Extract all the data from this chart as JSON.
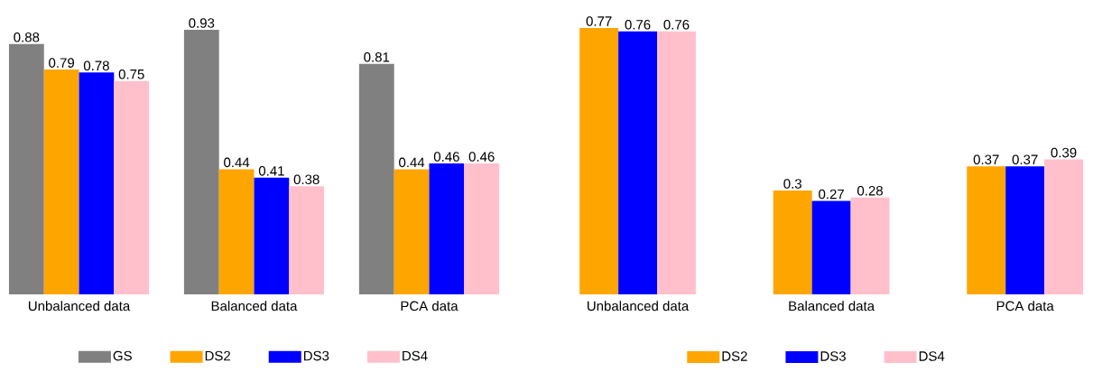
{
  "chart_data": [
    {
      "type": "bar",
      "categories": [
        "Unbalanced data",
        "Balanced data",
        "PCA data"
      ],
      "data_labels": true,
      "legend": "bottom",
      "series": [
        {
          "name": "GS",
          "color": "#808080",
          "values": [
            0.88,
            0.93,
            0.81
          ]
        },
        {
          "name": "DS2",
          "color": "#ffa500",
          "values": [
            0.79,
            0.44,
            0.44
          ]
        },
        {
          "name": "DS3",
          "color": "#0000ff",
          "values": [
            0.78,
            0.41,
            0.46
          ]
        },
        {
          "name": "DS4",
          "color": "#ffc0cb",
          "values": [
            0.75,
            0.38,
            0.46
          ]
        }
      ]
    },
    {
      "type": "bar",
      "categories": [
        "Unbalanced data",
        "Balanced data",
        "PCA data"
      ],
      "data_labels": true,
      "legend": "bottom",
      "series": [
        {
          "name": "DS2",
          "color": "#ffa500",
          "values": [
            0.77,
            0.3,
            0.37
          ]
        },
        {
          "name": "DS3",
          "color": "#0000ff",
          "values": [
            0.76,
            0.27,
            0.37
          ]
        },
        {
          "name": "DS4",
          "color": "#ffc0cb",
          "values": [
            0.76,
            0.28,
            0.39
          ]
        }
      ]
    }
  ]
}
